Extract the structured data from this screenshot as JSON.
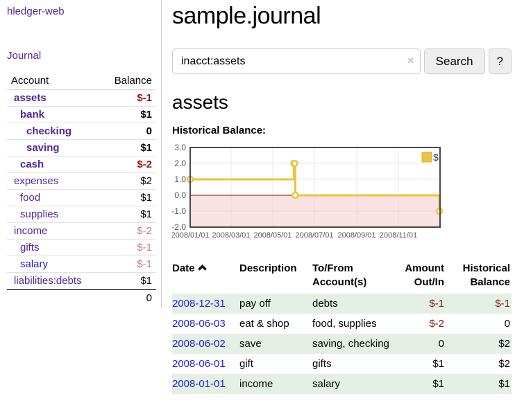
{
  "colors": {
    "link_visited_purple": "#51279b",
    "link_blue": "#1c1ce0",
    "negative_bold_red": "#9e1515",
    "negative_muted_rose": "#c47d7d",
    "negative_dark_red": "#7e1616",
    "row_stripe_green": "#e4f0e4",
    "chart_line_gold": "#edc240",
    "chart_negative_fill_pink": "#f6caca",
    "chart_zero_line": "#8b0000"
  },
  "sidebar": {
    "app_title": "hledger-web",
    "journal_link": "Journal",
    "accounts": {
      "headers": {
        "account": "Account",
        "balance": "Balance"
      },
      "rows": [
        {
          "name": "assets",
          "balance": "$-1"
        },
        {
          "name": "bank",
          "balance": "$1"
        },
        {
          "name": "checking",
          "balance": "0"
        },
        {
          "name": "saving",
          "balance": "$1"
        },
        {
          "name": "cash",
          "balance": "$-2"
        },
        {
          "name": "expenses",
          "balance": "$2"
        },
        {
          "name": "food",
          "balance": "$1"
        },
        {
          "name": "supplies",
          "balance": "$1"
        },
        {
          "name": "income",
          "balance": "$-2"
        },
        {
          "name": "gifts",
          "balance": "$-1"
        },
        {
          "name": "salary",
          "balance": "$-1"
        },
        {
          "name": "liabilities:debts",
          "balance": "$1"
        }
      ],
      "total": "0"
    }
  },
  "main": {
    "page_title": "sample.journal",
    "search": {
      "value": "inacct:assets",
      "clear_icon": "×",
      "search_button": "Search",
      "help_button": "?"
    },
    "account_heading": "assets"
  },
  "chart_data": {
    "type": "line",
    "step": true,
    "title": "Historical Balance:",
    "series": [
      {
        "name": "$",
        "color": "#edc240",
        "points": [
          [
            "2008-01-01",
            1
          ],
          [
            "2008-06-01",
            2
          ],
          [
            "2008-06-02",
            2
          ],
          [
            "2008-06-03",
            0
          ],
          [
            "2008-12-31",
            -1
          ]
        ]
      }
    ],
    "xlim": [
      "2008-01-01",
      "2009-01-01"
    ],
    "ylim": [
      -2,
      3
    ],
    "yticks": [
      3,
      2,
      1,
      0,
      -1,
      -2
    ],
    "xticks": [
      "2008/01/01",
      "2008/03/01",
      "2008/05/01",
      "2008/07/01",
      "2008/09/01",
      "2008/11/01"
    ],
    "grid": true,
    "legend": {
      "position": "top-right",
      "label": "$"
    },
    "zero_line_color": "#8b0000",
    "negative_region_fill": "#f6caca",
    "axis_text_color": "#545454"
  },
  "register": {
    "headers": {
      "date": "Date",
      "description": "Description",
      "accounts": "To/From Account(s)",
      "amount": "Amount Out/In",
      "balance": "Historical Balance"
    },
    "rows": [
      {
        "date": "2008-12-31",
        "description": "pay off",
        "accounts": "debts",
        "amount": "$-1",
        "balance": "$-1"
      },
      {
        "date": "2008-06-03",
        "description": "eat & shop",
        "accounts": "food, supplies",
        "amount": "$-2",
        "balance": "0"
      },
      {
        "date": "2008-06-02",
        "description": "save",
        "accounts": "saving, checking",
        "amount": "0",
        "balance": "$2"
      },
      {
        "date": "2008-06-01",
        "description": "gift",
        "accounts": "gifts",
        "amount": "$1",
        "balance": "$2"
      },
      {
        "date": "2008-01-01",
        "description": "income",
        "accounts": "salary",
        "amount": "$1",
        "balance": "$1"
      }
    ]
  }
}
